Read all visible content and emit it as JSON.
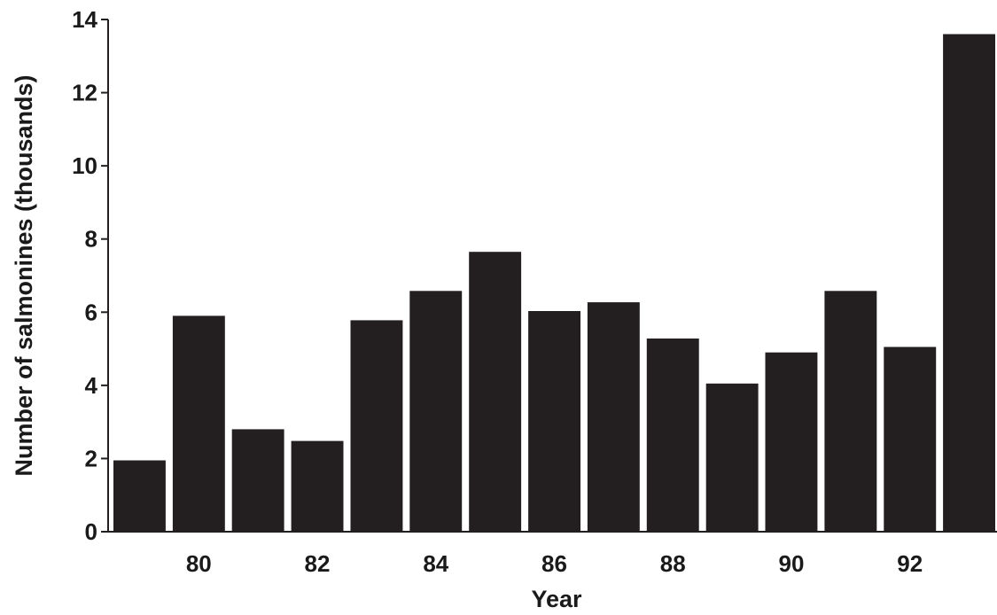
{
  "chart_data": {
    "type": "bar",
    "title": "",
    "xlabel": "Year",
    "ylabel": "Number of salmonines (thousands)",
    "categories": [
      "79",
      "80",
      "81",
      "82",
      "83",
      "84",
      "85",
      "86",
      "87",
      "88",
      "89",
      "90",
      "91",
      "92",
      "93"
    ],
    "values": [
      1.95,
      5.9,
      2.8,
      2.48,
      5.78,
      6.58,
      7.65,
      6.03,
      6.27,
      5.28,
      4.05,
      4.9,
      6.58,
      5.05,
      13.6
    ],
    "x_tick_labels": [
      "80",
      "82",
      "84",
      "86",
      "88",
      "90",
      "92"
    ],
    "y_ticks": [
      0,
      2,
      4,
      6,
      8,
      10,
      12,
      14
    ],
    "y_tick_labels": [
      "0",
      "2",
      "4",
      "6",
      "8",
      "10",
      "12",
      "14"
    ],
    "ylim": [
      0,
      14
    ],
    "grid": false,
    "legend": "none",
    "bar_color": "#231f20"
  }
}
